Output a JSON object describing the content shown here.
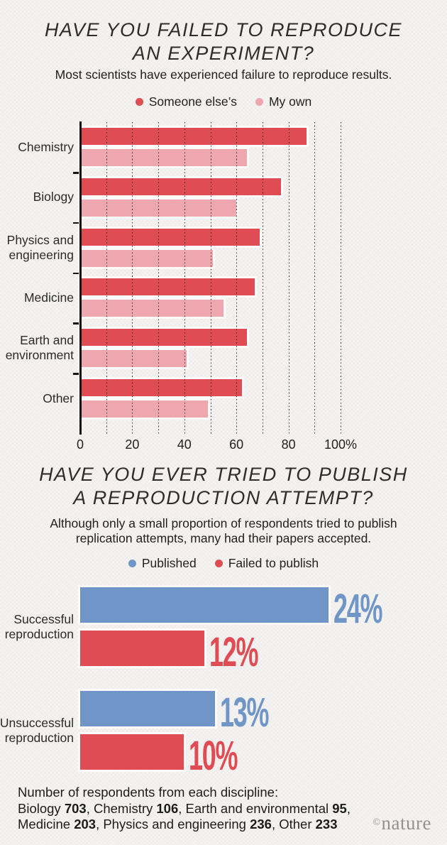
{
  "colors": {
    "someone_elses_red": "#e04c53",
    "my_own_pink": "#eea7ae",
    "published_blue": "#7096c7",
    "failed_red": "#e04c53",
    "title_text": "#2d2d2d",
    "logo_gray": "#929292"
  },
  "chart_data": [
    {
      "type": "bar",
      "orientation": "horizontal",
      "title": "HAVE YOU FAILED TO REPRODUCE AN EXPERIMENT?",
      "title_lines": [
        "HAVE YOU FAILED TO REPRODUCE",
        "AN EXPERIMENT?"
      ],
      "subtitle": "Most scientists have experienced failure to reproduce results.",
      "categories": [
        [
          "Chemistry"
        ],
        [
          "Biology"
        ],
        [
          "Physics and",
          "engineering"
        ],
        [
          "Medicine"
        ],
        [
          "Earth and",
          "environment"
        ],
        [
          "Other"
        ]
      ],
      "series": [
        {
          "name": "Someone else’s",
          "color": "#e04c53",
          "values": [
            87,
            77,
            69,
            67,
            64,
            62
          ]
        },
        {
          "name": "My own",
          "color": "#eea7ae",
          "values": [
            64,
            60,
            51,
            55,
            41,
            49
          ]
        }
      ],
      "xlim": [
        0,
        100
      ],
      "xticks": [
        0,
        20,
        40,
        60,
        80,
        100
      ],
      "xtick_labels": [
        "0",
        "20",
        "40",
        "60",
        "80",
        "100%"
      ],
      "grid_interval": 10,
      "grid_style": "dotted-vertical",
      "legend_position": "top"
    },
    {
      "type": "bar",
      "orientation": "horizontal",
      "title": "HAVE YOU EVER TRIED TO PUBLISH A REPRODUCTION ATTEMPT?",
      "title_lines": [
        "HAVE YOU EVER TRIED TO PUBLISH",
        "A REPRODUCTION ATTEMPT?"
      ],
      "subtitle_lines": [
        "Although only a small proportion of respondents tried to publish",
        "replication attempts, many had their papers accepted."
      ],
      "categories": [
        [
          "Successful",
          "reproduction"
        ],
        [
          "Unsuccessful",
          "reproduction"
        ]
      ],
      "series": [
        {
          "name": "Published",
          "color": "#7096c7",
          "values": [
            24,
            13
          ]
        },
        {
          "name": "Failed to publish",
          "color": "#e04c53",
          "values": [
            12,
            10
          ]
        }
      ],
      "value_label_suffix": "%",
      "grid_style": "none",
      "legend_position": "top"
    }
  ],
  "footer": {
    "intro": "Number of respondents from each discipline:",
    "lines": [
      [
        [
          "Biology ",
          false
        ],
        [
          "703",
          true
        ],
        [
          ", Chemistry ",
          false
        ],
        [
          "106",
          true
        ],
        [
          ", Earth and environmental ",
          false
        ],
        [
          "95",
          true
        ],
        [
          ",",
          false
        ]
      ],
      [
        [
          "Medicine ",
          false
        ],
        [
          "203",
          true
        ],
        [
          ", Physics and engineering ",
          false
        ],
        [
          "236",
          true
        ],
        [
          ", Other ",
          false
        ],
        [
          "233",
          true
        ]
      ]
    ]
  },
  "logo": {
    "mark": "©",
    "name": "nature"
  }
}
